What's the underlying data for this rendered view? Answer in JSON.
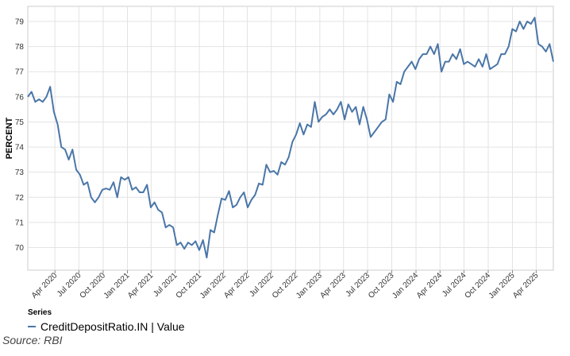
{
  "chart_data": {
    "type": "line",
    "ylabel": "PERCENT",
    "xlabel": "",
    "ylim": [
      69.1,
      79.6
    ],
    "yticks": [
      70,
      71,
      72,
      73,
      74,
      75,
      76,
      77,
      78,
      79
    ],
    "xlim": [
      "2019-12-20",
      "2025-06-05"
    ],
    "xticks": [
      {
        "date": "2020-04-01",
        "label": "Apr 2020"
      },
      {
        "date": "2020-07-01",
        "label": "Jul 2020"
      },
      {
        "date": "2020-10-01",
        "label": "Oct 2020"
      },
      {
        "date": "2021-01-01",
        "label": "Jan 2021"
      },
      {
        "date": "2021-04-01",
        "label": "Apr 2021"
      },
      {
        "date": "2021-07-01",
        "label": "Jul 2021"
      },
      {
        "date": "2021-10-01",
        "label": "Oct 2021"
      },
      {
        "date": "2022-01-01",
        "label": "Jan 2022"
      },
      {
        "date": "2022-04-01",
        "label": "Apr 2022"
      },
      {
        "date": "2022-07-01",
        "label": "Jul 2022"
      },
      {
        "date": "2022-10-01",
        "label": "Oct 2022"
      },
      {
        "date": "2023-01-01",
        "label": "Jan 2023"
      },
      {
        "date": "2023-04-01",
        "label": "Apr 2023"
      },
      {
        "date": "2023-07-01",
        "label": "Jul 2023"
      },
      {
        "date": "2023-10-01",
        "label": "Oct 2023"
      },
      {
        "date": "2024-01-01",
        "label": "Jan 2024"
      },
      {
        "date": "2024-04-01",
        "label": "Apr 2024"
      },
      {
        "date": "2024-07-01",
        "label": "Jul 2024"
      },
      {
        "date": "2024-10-01",
        "label": "Oct 2024"
      },
      {
        "date": "2025-01-01",
        "label": "Jan 2025"
      },
      {
        "date": "2025-04-01",
        "label": "Apr 2025"
      }
    ],
    "grid": true,
    "legend_position": "bottom-left",
    "series": [
      {
        "name": "CreditDepositRatio.IN | Value",
        "color": "#4a76a8",
        "x_start": "2019-12-20",
        "x_end": "2025-06-05",
        "values": [
          76.0,
          76.2,
          75.8,
          75.9,
          75.8,
          76.0,
          76.4,
          75.4,
          74.9,
          74.0,
          73.9,
          73.5,
          73.9,
          73.1,
          72.9,
          72.5,
          72.6,
          72.0,
          71.8,
          72.0,
          72.3,
          72.35,
          72.3,
          72.6,
          72.0,
          72.8,
          72.7,
          72.8,
          72.3,
          72.4,
          72.2,
          72.2,
          72.5,
          71.6,
          71.8,
          71.5,
          71.4,
          70.8,
          70.9,
          70.8,
          70.1,
          70.2,
          69.95,
          70.2,
          70.1,
          70.25,
          69.9,
          70.3,
          69.6,
          70.7,
          70.6,
          71.3,
          71.95,
          71.9,
          72.25,
          71.6,
          71.7,
          72.0,
          72.2,
          71.6,
          71.9,
          72.1,
          72.55,
          72.5,
          73.3,
          73.0,
          73.05,
          72.9,
          73.4,
          73.3,
          73.6,
          74.2,
          74.5,
          74.95,
          74.5,
          74.9,
          74.8,
          75.8,
          75.0,
          75.2,
          75.3,
          75.5,
          75.3,
          75.5,
          75.8,
          75.1,
          75.7,
          75.4,
          75.6,
          74.9,
          75.6,
          75.1,
          74.4,
          74.6,
          74.8,
          75.0,
          75.1,
          76.1,
          75.8,
          76.6,
          76.5,
          77.0,
          77.2,
          77.4,
          77.1,
          77.5,
          77.7,
          77.7,
          78.0,
          77.7,
          78.1,
          77.0,
          77.4,
          77.4,
          77.7,
          77.5,
          77.9,
          77.3,
          77.4,
          77.3,
          77.2,
          77.5,
          77.2,
          77.7,
          77.1,
          77.2,
          77.3,
          77.7,
          77.7,
          78.0,
          78.7,
          78.6,
          79.0,
          78.7,
          79.0,
          78.9,
          79.15,
          78.1,
          78.0,
          77.8,
          78.1,
          77.4
        ]
      }
    ],
    "source": "Source: RBI"
  },
  "legend": {
    "title": "Series",
    "items": [
      {
        "label": "CreditDepositRatio.IN | Value",
        "color": "#4a76a8"
      }
    ]
  },
  "source_text": "Source: RBI"
}
